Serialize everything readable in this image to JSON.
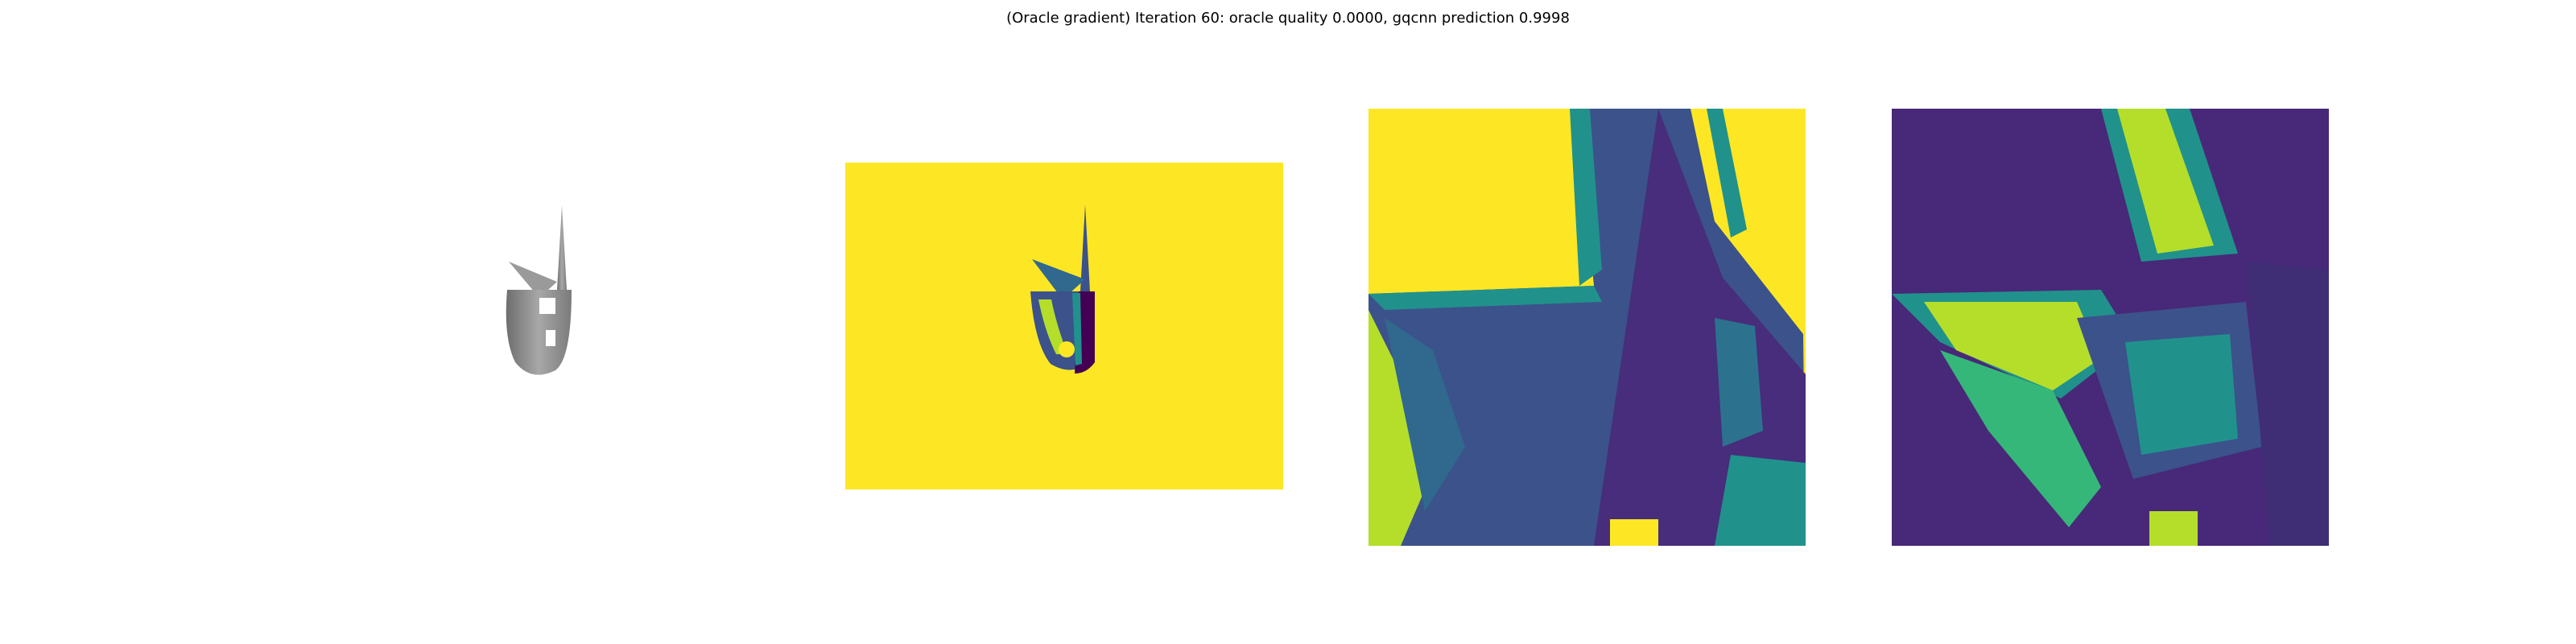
{
  "figure": {
    "title": "(Oracle gradient) Iteration 60: oracle quality 0.0000, gqcnn prediction 0.9998"
  },
  "panels": [
    {
      "name": "rendered-object",
      "content": "grey 3D render of object"
    },
    {
      "name": "depth-image",
      "content": "viridis depth image"
    },
    {
      "name": "depth-crop",
      "content": "viridis depth crop"
    },
    {
      "name": "gradient-map",
      "content": "viridis gradient map"
    }
  ],
  "colors": {
    "viridis_yellow": "#fde725",
    "viridis_green": "#b5de2b",
    "viridis_teal": "#21918c",
    "viridis_blue": "#3b528b",
    "viridis_purple": "#440154",
    "render_grey": "#8c8c8c"
  }
}
